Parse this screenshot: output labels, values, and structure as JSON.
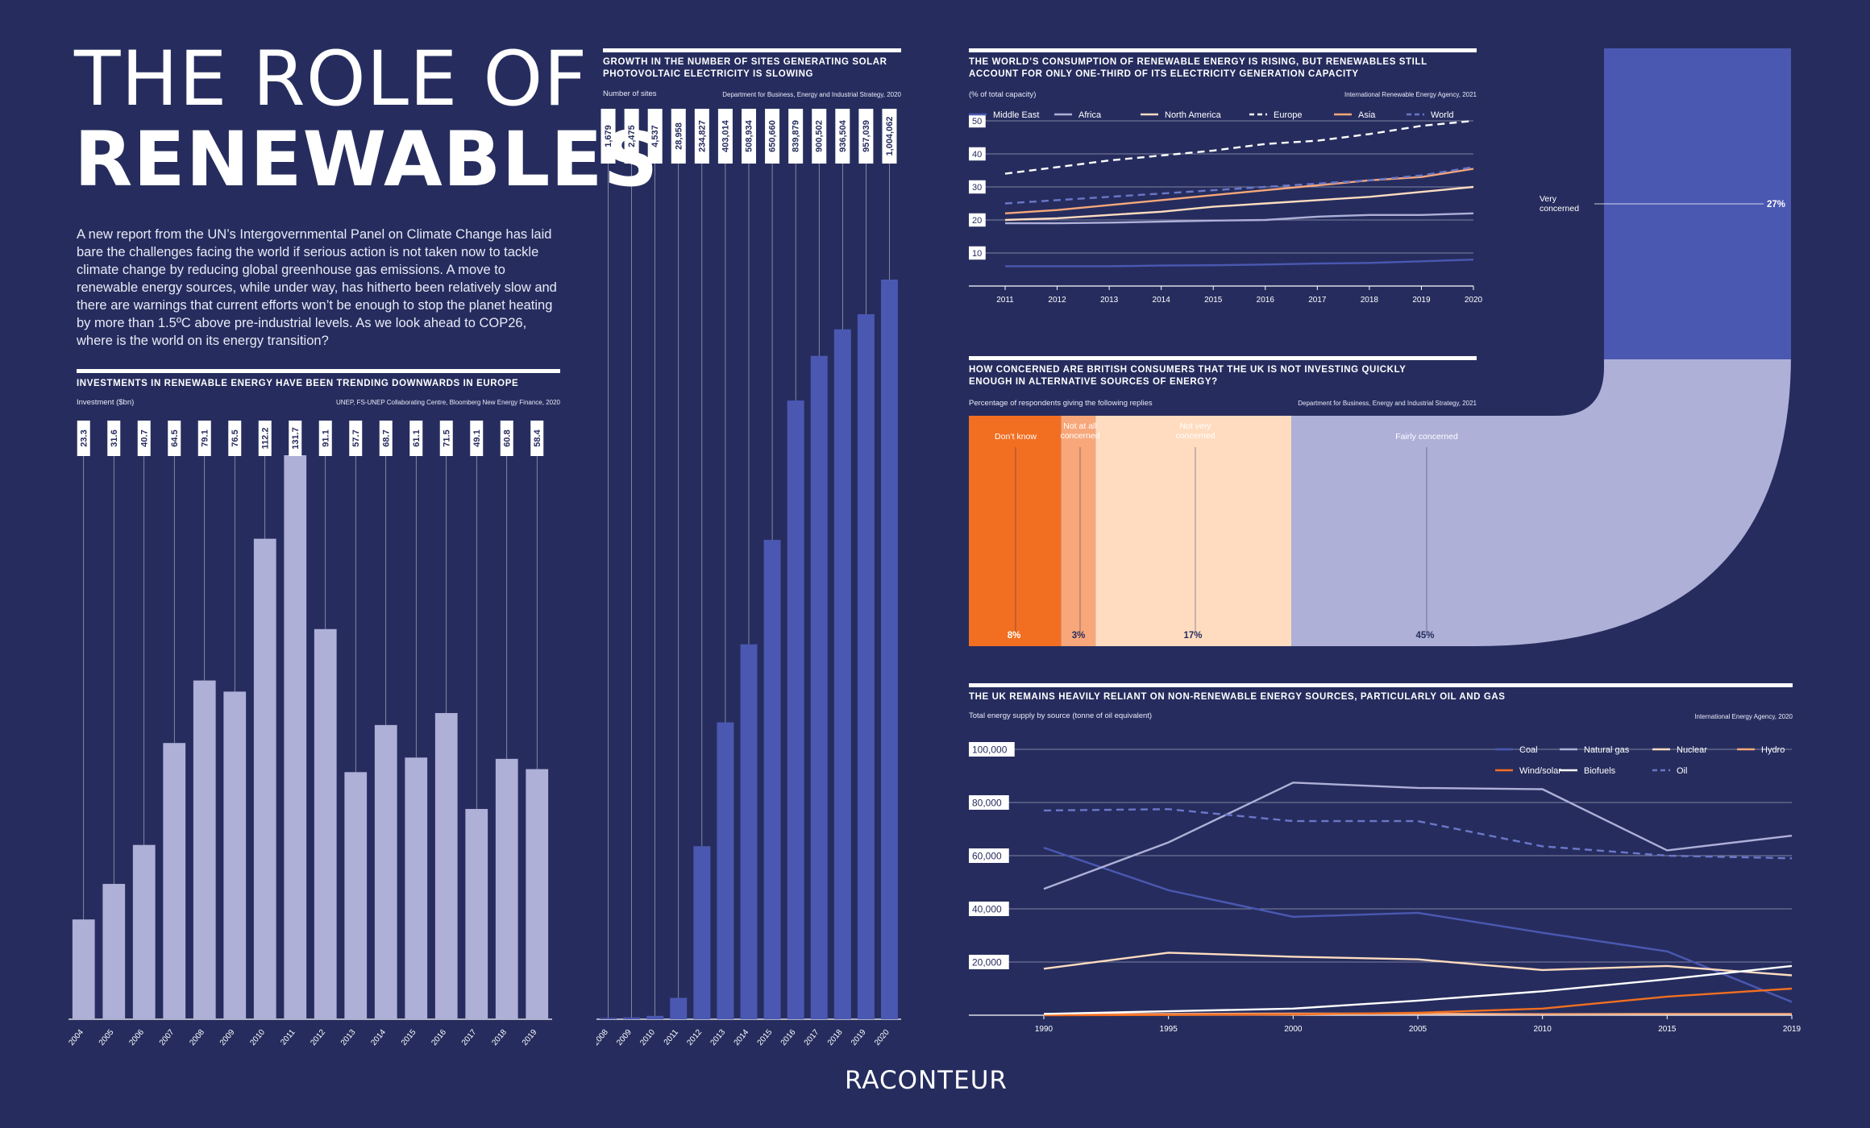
{
  "header": {
    "title_line1": "THE ROLE OF",
    "title_line2": "RENEWABLES",
    "intro": "A new report from the UN’s Intergovernmental Panel on Climate Change has laid bare the challenges facing the world if serious action is not taken now to tackle climate change by reducing global greenhouse gas emissions. A move to renewable energy sources, while under way, has hitherto been relatively slow and there are warnings that current efforts won’t be enough to stop the planet heating by more than 1.5ºC above pre-industrial levels. As we look ahead to COP26, where is the world on its energy transition?"
  },
  "colors": {
    "background": "#262d5e",
    "bar_light": "#aeb0d8",
    "bar_blue": "#4b58b2",
    "orange": "#f26f21",
    "peach": "#ffdcc0",
    "lavender": "#aeb0d8",
    "mid_blue": "#4b58b2"
  },
  "logo": "RACONTEUR",
  "chart_data": [
    {
      "id": "investments",
      "type": "bar",
      "title": "INVESTMENTS IN RENEWABLE ENERGY HAVE BEEN TRENDING DOWNWARDS IN EUROPE",
      "ylabel": "Investment ($bn)",
      "source": "UNEP, FS-UNEP Collaborating Centre, Bloomberg New Energy Finance, 2020",
      "categories": [
        "2004",
        "2005",
        "2006",
        "2007",
        "2008",
        "2009",
        "2010",
        "2011",
        "2012",
        "2013",
        "2014",
        "2015",
        "2016",
        "2017",
        "2018",
        "2019"
      ],
      "values": [
        23.3,
        31.6,
        40.7,
        64.5,
        79.1,
        76.5,
        112.2,
        131.7,
        91.1,
        57.7,
        68.7,
        61.1,
        71.5,
        49.1,
        60.8,
        58.4
      ],
      "labels": [
        "23.3",
        "31.6",
        "40.7",
        "64.5",
        "79.1",
        "76.5",
        "112.2",
        "131.7",
        "91.1",
        "57.7",
        "68.7",
        "61.1",
        "71.5",
        "49.1",
        "60.8",
        "58.4"
      ],
      "ylim": [
        0,
        131.7
      ]
    },
    {
      "id": "solar",
      "type": "bar",
      "title": "GROWTH IN THE NUMBER OF SITES GENERATING SOLAR PHOTOVOLTAIC ELECTRICITY IS SLOWING",
      "ylabel": "Number of sites",
      "source": "Department for Business, Energy and Industrial Strategy, 2020",
      "categories": [
        "2008",
        "2009",
        "2010",
        "2011",
        "2012",
        "2013",
        "2014",
        "2015",
        "2016",
        "2017",
        "2018",
        "2019",
        "2020"
      ],
      "values": [
        1679,
        2475,
        4537,
        28958,
        234827,
        403014,
        508934,
        650660,
        839879,
        900502,
        936504,
        957039,
        1004062
      ],
      "labels": [
        "1,679",
        "2,475",
        "4,537",
        "28,958",
        "234,827",
        "403,014",
        "508,934",
        "650,660",
        "839,879",
        "900,502",
        "936,504",
        "957,039",
        "1,004,062"
      ],
      "ylim": [
        0,
        1004062
      ]
    },
    {
      "id": "consumption",
      "type": "line",
      "title": "THE WORLD’S CONSUMPTION OF RENEWABLE ENERGY IS RISING, BUT RENEWABLES STILL ACCOUNT FOR ONLY ONE-THIRD OF ITS ELECTRICITY GENERATION CAPACITY",
      "ylabel": "(% of total capacity)",
      "source": "International Renewable Energy Agency, 2021",
      "x": [
        "2011",
        "2012",
        "2013",
        "2014",
        "2015",
        "2016",
        "2017",
        "2018",
        "2019",
        "2020"
      ],
      "yticks": [
        "10",
        "20",
        "30",
        "40",
        "50"
      ],
      "ylim": [
        0,
        50
      ],
      "series": [
        {
          "name": "Middle East",
          "color": "#4b58b2",
          "dash": false,
          "values": [
            6,
            6,
            6,
            6.2,
            6.3,
            6.5,
            6.8,
            7,
            7.5,
            8
          ]
        },
        {
          "name": "Africa",
          "color": "#aeb0d8",
          "dash": false,
          "values": [
            19,
            19,
            19.2,
            19.5,
            19.8,
            20,
            21,
            21.5,
            21.5,
            22
          ]
        },
        {
          "name": "North America",
          "color": "#ffdcc0",
          "dash": false,
          "values": [
            20,
            20.5,
            21.5,
            22.5,
            24,
            25,
            26,
            27,
            28.5,
            30
          ]
        },
        {
          "name": "Europe",
          "color": "#ffffff",
          "dash": true,
          "values": [
            34,
            36,
            38,
            39.5,
            41,
            43,
            44,
            46,
            48.5,
            50
          ]
        },
        {
          "name": "Asia",
          "color": "#f7a77a",
          "dash": false,
          "values": [
            22,
            23,
            24.5,
            26,
            27.5,
            29,
            30.5,
            32,
            33,
            35.5
          ]
        },
        {
          "name": "World",
          "color": "#6b77c8",
          "dash": true,
          "values": [
            25,
            26,
            27,
            28,
            29,
            30,
            31,
            32,
            33.5,
            36
          ]
        }
      ]
    },
    {
      "id": "concern",
      "type": "bar",
      "title": "HOW CONCERNED ARE BRITISH CONSUMERS THAT THE UK IS NOT INVESTING QUICKLY ENOUGH IN ALTERNATIVE SOURCES OF ENERGY?",
      "ylabel": "Percentage of respondents giving the following replies",
      "source": "Department for Business, Energy and Industrial Strategy, 2021",
      "categories": [
        "Don’t know",
        "Not at all concerned",
        "Not very concerned",
        "Fairly concerned",
        "Very concerned"
      ],
      "values": [
        8,
        3,
        17,
        45,
        27
      ],
      "labels": [
        "8%",
        "3%",
        "17%",
        "45%",
        "27%"
      ]
    },
    {
      "id": "supply",
      "type": "line",
      "title": "THE UK REMAINS HEAVILY RELIANT ON NON-RENEWABLE ENERGY SOURCES, PARTICULARLY OIL AND GAS",
      "ylabel": "Total energy supply by source (tonne of oil equivalent)",
      "source": "International Energy Agency, 2020",
      "x": [
        "1990",
        "1995",
        "2000",
        "2005",
        "2010",
        "2015",
        "2019"
      ],
      "yticks": [
        "20,000",
        "40,000",
        "60,000",
        "80,000",
        "100,000"
      ],
      "ylim": [
        0,
        100000
      ],
      "series": [
        {
          "name": "Coal",
          "color": "#4b58b2",
          "dash": false,
          "values": [
            63000,
            47000,
            37000,
            38500,
            31000,
            24000,
            5000
          ]
        },
        {
          "name": "Natural gas",
          "color": "#aeb0d8",
          "dash": false,
          "values": [
            47500,
            65000,
            87500,
            85500,
            85000,
            62000,
            67500
          ]
        },
        {
          "name": "Nuclear",
          "color": "#ffdcc0",
          "dash": false,
          "values": [
            17500,
            23500,
            22000,
            21000,
            17000,
            18500,
            15000
          ]
        },
        {
          "name": "Hydro",
          "color": "#f7a77a",
          "dash": false,
          "values": [
            500,
            500,
            600,
            600,
            400,
            500,
            500
          ]
        },
        {
          "name": "Wind/solar",
          "color": "#f26f21",
          "dash": false,
          "values": [
            0,
            100,
            300,
            900,
            2500,
            7000,
            10000
          ]
        },
        {
          "name": "Biofuels",
          "color": "#ffffff",
          "dash": false,
          "values": [
            500,
            1500,
            2500,
            5500,
            9000,
            13500,
            18500
          ]
        },
        {
          "name": "Oil",
          "color": "#6b77c8",
          "dash": true,
          "values": [
            77000,
            77500,
            73000,
            73000,
            63500,
            60000,
            59000
          ]
        }
      ]
    }
  ]
}
